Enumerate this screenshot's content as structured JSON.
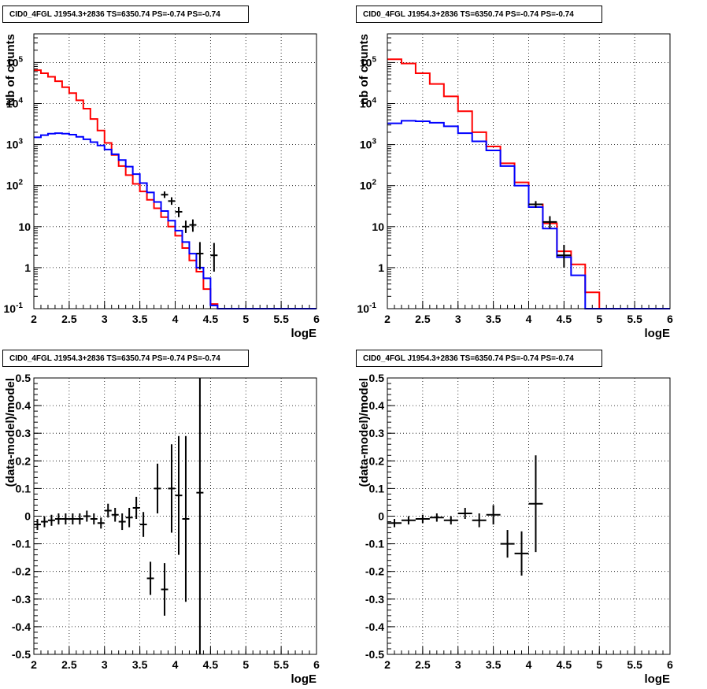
{
  "colors": {
    "model_total": "#ff0000",
    "model_source": "#0000ff",
    "data": "#000000",
    "grid": "#000000"
  },
  "chart_data": [
    {
      "type": "line",
      "title": "CID0_4FGL J1954.3+2836 TS=6350.74 PS=-0.74 PS=-0.74",
      "xlabel": "logE",
      "ylabel": "Nb of counts",
      "xlim": [
        2,
        6
      ],
      "ylim": [
        0.1,
        500000
      ],
      "yscale": "log",
      "grid": true,
      "xticks": [
        "2",
        "2.5",
        "3",
        "3.5",
        "4",
        "4.5",
        "5",
        "5.5",
        "6"
      ],
      "yticks": [
        {
          "v": 0.1,
          "label": "10^-1"
        },
        {
          "v": 1,
          "label": "1"
        },
        {
          "v": 10,
          "label": "10"
        },
        {
          "v": 100,
          "label": "10^2"
        },
        {
          "v": 1000,
          "label": "10^3"
        },
        {
          "v": 10000,
          "label": "10^4"
        },
        {
          "v": 100000,
          "label": "10^5"
        }
      ],
      "bin_edges": [
        2.0,
        2.1,
        2.2,
        2.3,
        2.4,
        2.5,
        2.6,
        2.7,
        2.8,
        2.9,
        3.0,
        3.1,
        3.2,
        3.3,
        3.4,
        3.5,
        3.6,
        3.7,
        3.8,
        3.9,
        4.0,
        4.1,
        4.2,
        4.3,
        4.4,
        4.5,
        4.6,
        4.7,
        4.8,
        4.9,
        5.0,
        5.1,
        5.2,
        5.3,
        5.4,
        5.5,
        5.6,
        5.7,
        5.8,
        5.9,
        6.0
      ],
      "series": [
        {
          "name": "model total",
          "style": "red-step",
          "values": [
            65000,
            55000,
            45000,
            35000,
            25000,
            18000,
            12000,
            7500,
            4200,
            2200,
            1100,
            560,
            300,
            180,
            110,
            72,
            45,
            28,
            17,
            10,
            6,
            3,
            1.5,
            0.8,
            0.3,
            0.13,
            0.1,
            0.1,
            0.1,
            0.1,
            0.1,
            0.1,
            0.1,
            0.1,
            0.1,
            0.1,
            0.1,
            0.1,
            0.1,
            0.1
          ]
        },
        {
          "name": "source model",
          "style": "blue-step",
          "values": [
            1500,
            1700,
            1850,
            1900,
            1850,
            1750,
            1550,
            1350,
            1150,
            950,
            760,
            580,
            420,
            290,
            190,
            115,
            68,
            40,
            24,
            14,
            8,
            4.2,
            2.2,
            1.0,
            0.55,
            0.12,
            0.1,
            0.1,
            0.1,
            0.1,
            0.1,
            0.1,
            0.1,
            0.1,
            0.1,
            0.1,
            0.1,
            0.1,
            0.1,
            0.1
          ]
        }
      ],
      "data_points": [
        {
          "x": 3.85,
          "y": 60,
          "ylo": 50,
          "yhi": 72
        },
        {
          "x": 3.95,
          "y": 42,
          "ylo": 34,
          "yhi": 52
        },
        {
          "x": 4.05,
          "y": 23,
          "ylo": 17,
          "yhi": 30
        },
        {
          "x": 4.15,
          "y": 10,
          "ylo": 7,
          "yhi": 14
        },
        {
          "x": 4.25,
          "y": 11,
          "ylo": 7.5,
          "yhi": 15
        },
        {
          "x": 4.35,
          "y": 2.2,
          "ylo": 0.9,
          "yhi": 4.2
        },
        {
          "x": 4.55,
          "y": 2,
          "ylo": 0.8,
          "yhi": 4
        }
      ],
      "xhalf": 0.05
    },
    {
      "type": "line",
      "title": "CID0_4FGL J1954.3+2836 TS=6350.74 PS=-0.74 PS=-0.74",
      "xlabel": "logE",
      "ylabel": "nb of counts",
      "xlim": [
        2,
        6
      ],
      "ylim": [
        0.1,
        500000
      ],
      "yscale": "log",
      "grid": true,
      "xticks": [
        "2",
        "2.5",
        "3",
        "3.5",
        "4",
        "4.5",
        "5",
        "5.5",
        "6"
      ],
      "yticks": [
        {
          "v": 0.1,
          "label": "10^-1"
        },
        {
          "v": 1,
          "label": "1"
        },
        {
          "v": 10,
          "label": "10"
        },
        {
          "v": 100,
          "label": "10^2"
        },
        {
          "v": 1000,
          "label": "10^3"
        },
        {
          "v": 10000,
          "label": "10^4"
        },
        {
          "v": 100000,
          "label": "10^5"
        }
      ],
      "bin_edges": [
        2.0,
        2.2,
        2.4,
        2.6,
        2.8,
        3.0,
        3.2,
        3.4,
        3.6,
        3.8,
        4.0,
        4.2,
        4.4,
        4.6,
        4.8,
        5.0,
        5.2,
        5.4,
        5.6,
        5.8,
        6.0
      ],
      "series": [
        {
          "name": "model total",
          "style": "red-step",
          "values": [
            120000,
            95000,
            55000,
            30000,
            15000,
            6500,
            2000,
            900,
            350,
            120,
            35,
            12,
            2.5,
            1.2,
            0.25,
            0.1,
            0.1,
            0.1,
            0.1,
            0.1
          ]
        },
        {
          "name": "source model",
          "style": "blue-step",
          "values": [
            3300,
            3800,
            3700,
            3400,
            2800,
            1900,
            1200,
            720,
            300,
            100,
            30,
            9,
            1.8,
            0.65,
            0.1,
            0.1,
            0.1,
            0.1,
            0.1,
            0.1
          ]
        }
      ],
      "data_points": [
        {
          "x": 4.1,
          "y": 35,
          "ylo": 29,
          "yhi": 42
        },
        {
          "x": 4.3,
          "y": 13,
          "ylo": 9,
          "yhi": 18
        },
        {
          "x": 4.5,
          "y": 2,
          "ylo": 1,
          "yhi": 3.6
        }
      ],
      "xhalf": 0.1
    },
    {
      "type": "scatter",
      "title": "CID0_4FGL J1954.3+2836 TS=6350.74 PS=-0.74 PS=-0.74",
      "xlabel": "logE",
      "ylabel": "(data-model)/model",
      "xlim": [
        2,
        6
      ],
      "ylim": [
        -0.5,
        0.5
      ],
      "yscale": "linear",
      "grid": true,
      "xticks": [
        "2",
        "2.5",
        "3",
        "3.5",
        "4",
        "4.5",
        "5",
        "5.5",
        "6"
      ],
      "yticks": [
        {
          "v": -0.5,
          "label": "-0.5"
        },
        {
          "v": -0.4,
          "label": "-0.4"
        },
        {
          "v": -0.3,
          "label": "-0.3"
        },
        {
          "v": -0.2,
          "label": "-0.2"
        },
        {
          "v": -0.1,
          "label": "-0.1"
        },
        {
          "v": 0,
          "label": "0"
        },
        {
          "v": 0.1,
          "label": "0.1"
        },
        {
          "v": 0.2,
          "label": "0.2"
        },
        {
          "v": 0.3,
          "label": "0.3"
        },
        {
          "v": 0.4,
          "label": "0.4"
        },
        {
          "v": 0.5,
          "label": "0.5"
        }
      ],
      "data_points": [
        {
          "x": 2.05,
          "y": -0.03,
          "err": 0.02
        },
        {
          "x": 2.15,
          "y": -0.02,
          "err": 0.02
        },
        {
          "x": 2.25,
          "y": -0.015,
          "err": 0.02
        },
        {
          "x": 2.35,
          "y": -0.01,
          "err": 0.02
        },
        {
          "x": 2.45,
          "y": -0.01,
          "err": 0.02
        },
        {
          "x": 2.55,
          "y": -0.01,
          "err": 0.02
        },
        {
          "x": 2.65,
          "y": -0.01,
          "err": 0.02
        },
        {
          "x": 2.75,
          "y": 0.0,
          "err": 0.02
        },
        {
          "x": 2.85,
          "y": -0.01,
          "err": 0.02
        },
        {
          "x": 2.95,
          "y": -0.025,
          "err": 0.02
        },
        {
          "x": 3.05,
          "y": 0.02,
          "err": 0.025
        },
        {
          "x": 3.15,
          "y": 0.005,
          "err": 0.025
        },
        {
          "x": 3.25,
          "y": -0.02,
          "err": 0.03
        },
        {
          "x": 3.35,
          "y": -0.005,
          "err": 0.035
        },
        {
          "x": 3.45,
          "y": 0.03,
          "err": 0.04
        },
        {
          "x": 3.55,
          "y": -0.03,
          "err": 0.045
        },
        {
          "x": 3.65,
          "y": -0.225,
          "err": 0.06
        },
        {
          "x": 3.75,
          "y": 0.1,
          "err": 0.09
        },
        {
          "x": 3.85,
          "y": -0.265,
          "err": 0.095
        },
        {
          "x": 3.95,
          "y": 0.1,
          "err": 0.16
        },
        {
          "x": 4.05,
          "y": 0.075,
          "err": 0.215
        },
        {
          "x": 4.15,
          "y": -0.01,
          "err": 0.3
        },
        {
          "x": 4.35,
          "y": 0.085,
          "err": 0.6
        }
      ],
      "xhalf": 0.05
    },
    {
      "type": "scatter",
      "title": "CID0_4FGL J1954.3+2836 TS=6350.74 PS=-0.74 PS=-0.74",
      "xlabel": "logE",
      "ylabel": "(data-model)/model",
      "xlim": [
        2,
        6
      ],
      "ylim": [
        -0.5,
        0.5
      ],
      "yscale": "linear",
      "grid": true,
      "xticks": [
        "2",
        "2.5",
        "3",
        "3.5",
        "4",
        "4.5",
        "5",
        "5.5",
        "6"
      ],
      "yticks": [
        {
          "v": -0.5,
          "label": "-0.5"
        },
        {
          "v": -0.4,
          "label": "-0.4"
        },
        {
          "v": -0.3,
          "label": "-0.3"
        },
        {
          "v": -0.2,
          "label": "-0.2"
        },
        {
          "v": -0.1,
          "label": "-0.1"
        },
        {
          "v": 0,
          "label": "0"
        },
        {
          "v": 0.1,
          "label": "0.1"
        },
        {
          "v": 0.2,
          "label": "0.2"
        },
        {
          "v": 0.3,
          "label": "0.3"
        },
        {
          "v": 0.4,
          "label": "0.4"
        },
        {
          "v": 0.5,
          "label": "0.5"
        }
      ],
      "data_points": [
        {
          "x": 2.1,
          "y": -0.025,
          "err": 0.015
        },
        {
          "x": 2.3,
          "y": -0.015,
          "err": 0.015
        },
        {
          "x": 2.5,
          "y": -0.01,
          "err": 0.015
        },
        {
          "x": 2.7,
          "y": -0.005,
          "err": 0.015
        },
        {
          "x": 2.9,
          "y": -0.015,
          "err": 0.015
        },
        {
          "x": 3.1,
          "y": 0.01,
          "err": 0.02
        },
        {
          "x": 3.3,
          "y": -0.015,
          "err": 0.025
        },
        {
          "x": 3.5,
          "y": 0.005,
          "err": 0.035
        },
        {
          "x": 3.7,
          "y": -0.1,
          "err": 0.05
        },
        {
          "x": 3.9,
          "y": -0.135,
          "err": 0.08
        },
        {
          "x": 4.1,
          "y": 0.045,
          "err": 0.175
        }
      ],
      "xhalf": 0.1
    }
  ]
}
